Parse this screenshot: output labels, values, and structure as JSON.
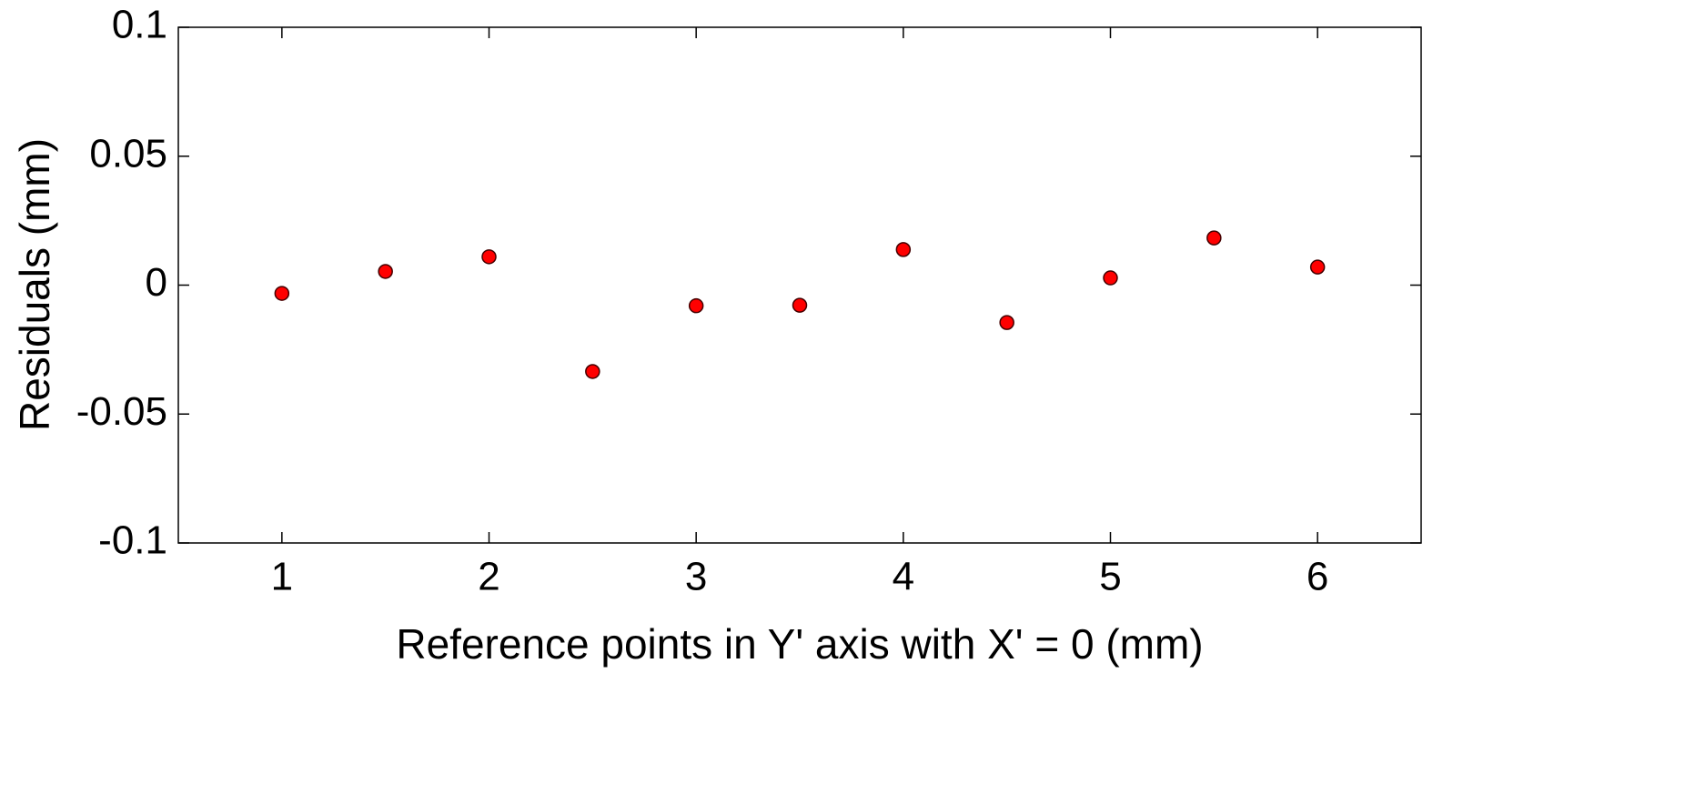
{
  "chart_data": {
    "type": "scatter",
    "xlabel": "Reference points in Y' axis with X' = 0 (mm)",
    "ylabel": "Residuals (mm)",
    "x": [
      1,
      1.5,
      2,
      2.5,
      3,
      3.5,
      4,
      4.5,
      5,
      5.5,
      6
    ],
    "series": [
      {
        "color": "#ff0000",
        "values": [
          -0.0032,
          0.0053,
          0.011,
          -0.0335,
          -0.008,
          -0.0078,
          0.0138,
          -0.0145,
          0.0028,
          0.0183,
          0.007
        ]
      }
    ],
    "xlim": [
      0.5,
      6.5
    ],
    "xticks": [
      1,
      2,
      3,
      4,
      5,
      6
    ],
    "ylim": [
      -0.1,
      0.1
    ],
    "yticks": [
      -0.1,
      -0.05,
      0,
      0.05,
      0.1
    ],
    "grid": false
  }
}
